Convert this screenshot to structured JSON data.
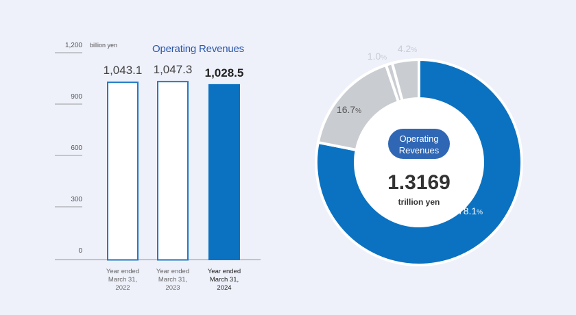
{
  "chart_data": [
    {
      "type": "bar",
      "title": "Operating Revenues",
      "unit_label": "billion yen",
      "ylim": [
        0,
        1200
      ],
      "yticks": [
        "0",
        "300",
        "600",
        "900",
        "1,200"
      ],
      "ytick_values": [
        0,
        300,
        600,
        900,
        1200
      ],
      "categories": [
        [
          "Year ended",
          "March 31,",
          "2022"
        ],
        [
          "Year ended",
          "March 31,",
          "2023"
        ],
        [
          "Year ended",
          "March 31,",
          "2024"
        ]
      ],
      "values": [
        1043.1,
        1047.3,
        1028.5
      ],
      "value_labels": [
        "1,043.1",
        "1,047.3",
        "1,028.5"
      ],
      "highlight_index": 2,
      "colors": {
        "accent": "#0b72c1",
        "outline": "#1f79c4",
        "fill": "#ffffff"
      }
    },
    {
      "type": "pie",
      "style": "donut",
      "center_title": [
        "Operating",
        "Revenues"
      ],
      "center_value": "1.3169",
      "center_unit": "trillion yen",
      "slices": [
        {
          "value": 78.1,
          "label": "78.1",
          "color": "#0b72c1"
        },
        {
          "value": 16.7,
          "label": "16.7",
          "color": "#c9ccd1"
        },
        {
          "value": 1.0,
          "label": "1.0",
          "color": "#c9ccd1"
        },
        {
          "value": 4.2,
          "label": "4.2",
          "color": "#c9ccd1"
        }
      ],
      "percent_sign": "%",
      "colors": {
        "pill": "#2f67b5",
        "center": "#ffffff"
      }
    }
  ]
}
